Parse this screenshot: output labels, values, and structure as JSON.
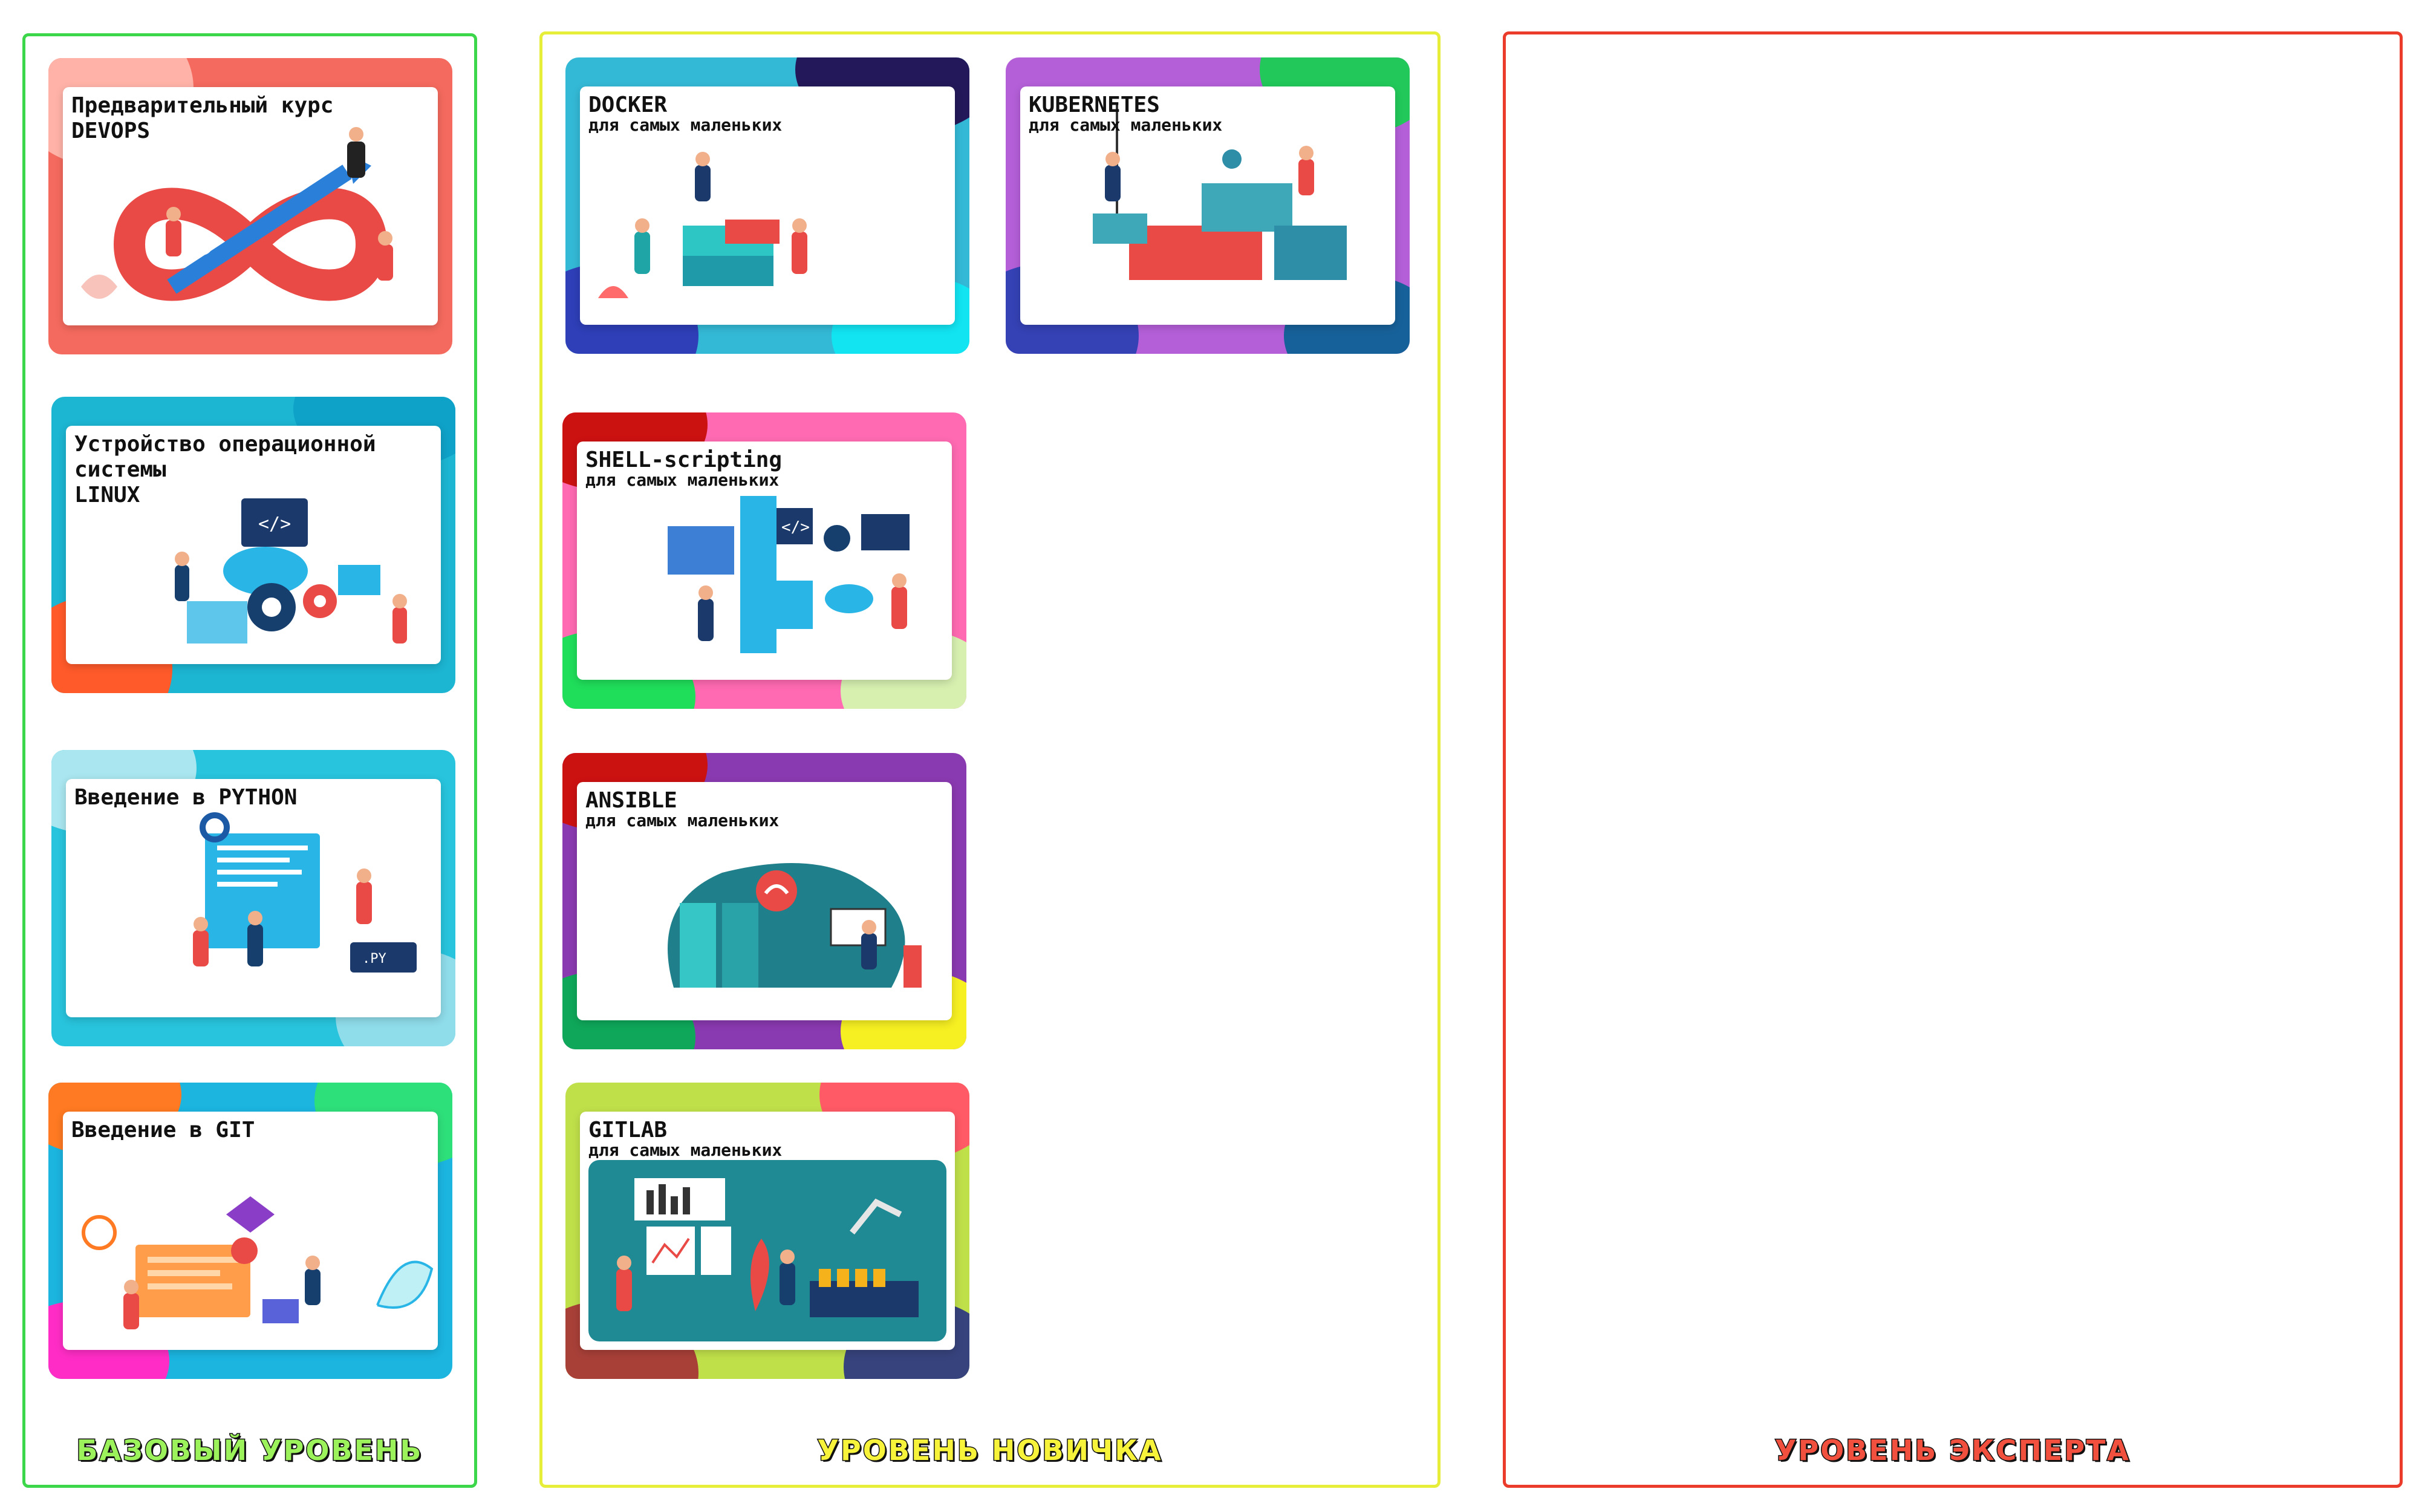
{
  "columns": {
    "basic": {
      "label": "БАЗОВЫЙ УРОВЕНЬ"
    },
    "novice": {
      "label": "УРОВЕНЬ НОВИЧКА"
    },
    "expert": {
      "label": "УРОВЕНЬ ЭКСПЕРТА"
    }
  },
  "basic_courses": [
    {
      "title": "Предварительный курс\nDEVOPS"
    },
    {
      "title": "Устройство операционной\nсистемы\nLINUX"
    },
    {
      "title": "Введение в PYTHON"
    },
    {
      "title": "Введение в GIT"
    }
  ],
  "novice_courses": [
    {
      "title": "DOCKER",
      "subtitle": "для самых маленьких"
    },
    {
      "title": "KUBERNETES",
      "subtitle": "для самых маленьких"
    },
    {
      "title": "SHELL-scripting",
      "subtitle": "для самых маленьких"
    },
    {
      "title": "ANSIBLE",
      "subtitle": "для самых маленьких"
    },
    {
      "title": "GITLAB",
      "subtitle": "для самых маленьких"
    }
  ],
  "colors": {
    "basic_border": "#3cd64a",
    "novice_border": "#e7ee3a",
    "expert_border": "#ea3b2b"
  }
}
